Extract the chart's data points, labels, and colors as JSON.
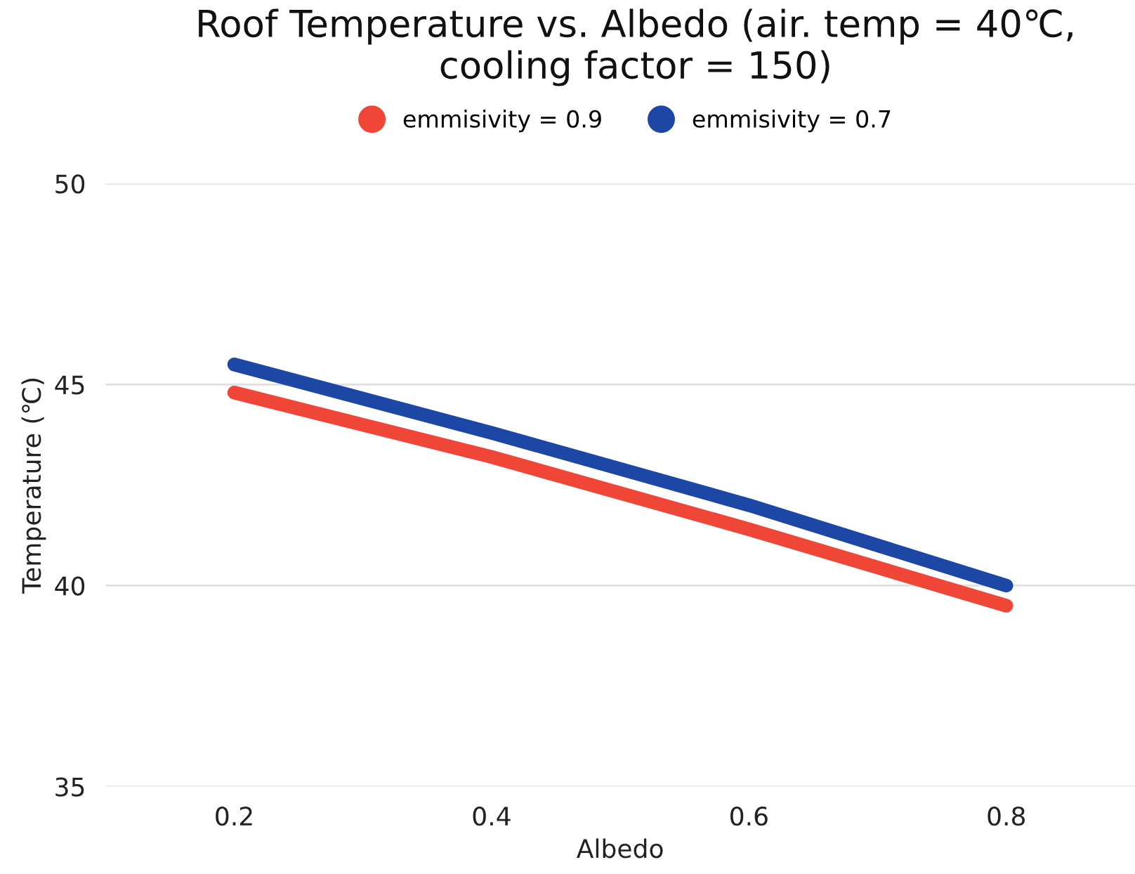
{
  "chart_data": {
    "type": "line",
    "title": "Roof Temperature vs. Albedo (air. temp = 40℃, cooling factor = 150)",
    "xlabel": "Albedo",
    "ylabel": "Temperature (℃)",
    "x": [
      0.2,
      0.4,
      0.6,
      0.8
    ],
    "series": [
      {
        "name": "emmisivity = 0.9",
        "color": "#ef4638",
        "values": [
          44.8,
          43.2,
          41.4,
          39.5
        ]
      },
      {
        "name": "emmisivity = 0.7",
        "color": "#1d47a5",
        "values": [
          45.5,
          43.8,
          42.0,
          40.0
        ]
      }
    ],
    "xlim": [
      0.1,
      0.9
    ],
    "xticks": [
      0.2,
      0.4,
      0.6,
      0.8
    ],
    "ylim": [
      35,
      50
    ],
    "yticks": [
      35,
      40,
      45,
      50
    ],
    "grid": "y",
    "legend": "top",
    "line_style": "solid"
  }
}
